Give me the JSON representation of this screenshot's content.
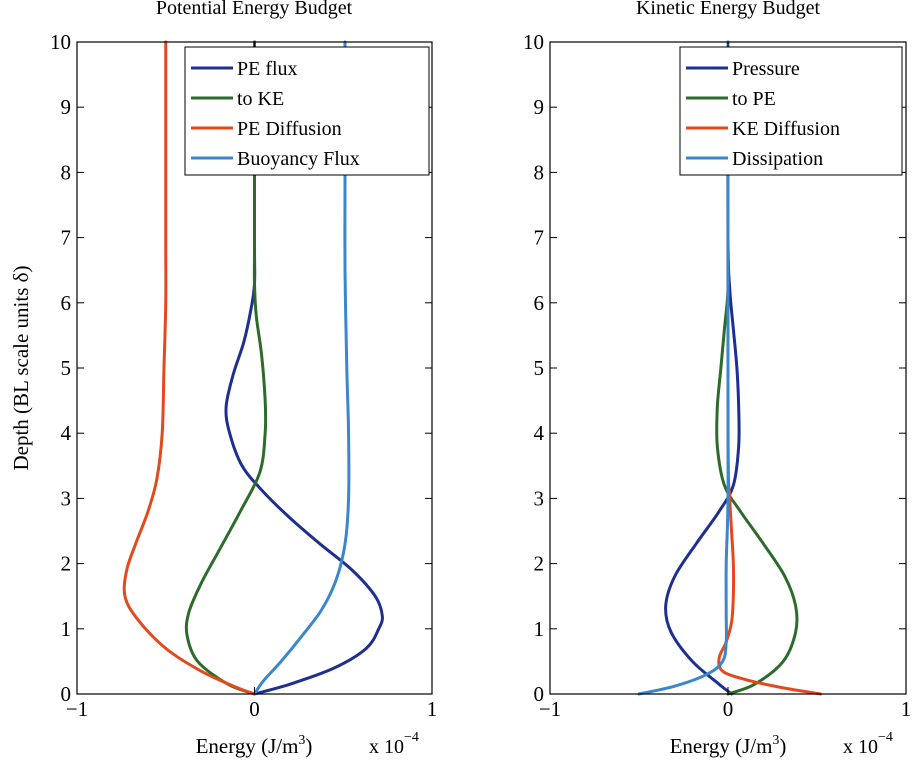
{
  "chart_data": [
    {
      "type": "line",
      "title": "Potential Energy Budget",
      "xlabel": "Energy (J/m",
      "xlabel_sup": "3",
      "xlabel_end": ")",
      "x_multiplier": "x 10",
      "x_multiplier_exp": "−4",
      "ylabel": "Depth (BL scale units δ)",
      "xlim": [
        -1,
        1
      ],
      "ylim": [
        0,
        10
      ],
      "x_ticks": [
        -1,
        0,
        1
      ],
      "x_tick_labels": [
        "−1",
        "0",
        "1"
      ],
      "y_ticks": [
        0,
        1,
        2,
        3,
        4,
        5,
        6,
        7,
        8,
        9,
        10
      ],
      "y_tick_labels": [
        "0",
        "1",
        "2",
        "3",
        "4",
        "5",
        "6",
        "7",
        "8",
        "9",
        "10"
      ],
      "grid": false,
      "legend_position": "top-right",
      "series": [
        {
          "name": "PE flux",
          "color": "#1f2f8f",
          "points": [
            [
              0,
              0
            ],
            [
              0.2,
              0.15
            ],
            [
              0.45,
              0.4
            ],
            [
              0.63,
              0.7
            ],
            [
              0.7,
              1.0
            ],
            [
              0.72,
              1.2
            ],
            [
              0.68,
              1.5
            ],
            [
              0.55,
              1.9
            ],
            [
              0.37,
              2.3
            ],
            [
              0.2,
              2.7
            ],
            [
              0.05,
              3.1
            ],
            [
              -0.07,
              3.5
            ],
            [
              -0.14,
              4.0
            ],
            [
              -0.16,
              4.4
            ],
            [
              -0.12,
              4.9
            ],
            [
              -0.06,
              5.4
            ],
            [
              -0.02,
              5.9
            ],
            [
              0,
              6.3
            ],
            [
              0,
              7
            ],
            [
              0,
              10
            ]
          ]
        },
        {
          "name": "to KE",
          "color": "#2e6b2a",
          "points": [
            [
              0,
              0
            ],
            [
              -0.15,
              0.15
            ],
            [
              -0.32,
              0.5
            ],
            [
              -0.38,
              0.9
            ],
            [
              -0.37,
              1.25
            ],
            [
              -0.3,
              1.7
            ],
            [
              -0.2,
              2.2
            ],
            [
              -0.08,
              2.8
            ],
            [
              0.03,
              3.4
            ],
            [
              0.06,
              4.0
            ],
            [
              0.06,
              4.5
            ],
            [
              0.04,
              5.2
            ],
            [
              0.01,
              5.8
            ],
            [
              0,
              6.3
            ],
            [
              0,
              7
            ],
            [
              0,
              10
            ]
          ]
        },
        {
          "name": "PE Diffusion",
          "color": "#e24a1e",
          "points": [
            [
              0,
              0
            ],
            [
              -0.1,
              0.1
            ],
            [
              -0.3,
              0.35
            ],
            [
              -0.5,
              0.7
            ],
            [
              -0.66,
              1.15
            ],
            [
              -0.73,
              1.5
            ],
            [
              -0.72,
              1.9
            ],
            [
              -0.67,
              2.3
            ],
            [
              -0.6,
              2.8
            ],
            [
              -0.55,
              3.3
            ],
            [
              -0.52,
              4.0
            ],
            [
              -0.51,
              5.0
            ],
            [
              -0.5,
              6.0
            ],
            [
              -0.5,
              7.0
            ],
            [
              -0.5,
              10
            ]
          ]
        },
        {
          "name": "Buoyancy Flux",
          "color": "#3a86cf",
          "points": [
            [
              0,
              0
            ],
            [
              0.05,
              0.2
            ],
            [
              0.15,
              0.5
            ],
            [
              0.27,
              0.9
            ],
            [
              0.38,
              1.3
            ],
            [
              0.46,
              1.75
            ],
            [
              0.51,
              2.3
            ],
            [
              0.53,
              3.0
            ],
            [
              0.53,
              4.0
            ],
            [
              0.52,
              5.0
            ],
            [
              0.51,
              6.5
            ],
            [
              0.51,
              8.0
            ],
            [
              0.51,
              10
            ]
          ]
        }
      ]
    },
    {
      "type": "line",
      "title": "Kinetic Energy Budget",
      "xlabel": "Energy (J/m",
      "xlabel_sup": "3",
      "xlabel_end": ")",
      "x_multiplier": "x 10",
      "x_multiplier_exp": "−4",
      "ylabel": "",
      "xlim": [
        -1,
        1
      ],
      "ylim": [
        0,
        10
      ],
      "x_ticks": [
        -1,
        0,
        1
      ],
      "x_tick_labels": [
        "−1",
        "0",
        "1"
      ],
      "y_ticks": [
        0,
        1,
        2,
        3,
        4,
        5,
        6,
        7,
        8,
        9,
        10
      ],
      "y_tick_labels": [
        "0",
        "1",
        "2",
        "3",
        "4",
        "5",
        "6",
        "7",
        "8",
        "9",
        "10"
      ],
      "grid": false,
      "legend_position": "top-right",
      "series": [
        {
          "name": "Pressure",
          "color": "#1f2f8f",
          "points": [
            [
              0.02,
              0
            ],
            [
              -0.05,
              0.15
            ],
            [
              -0.2,
              0.5
            ],
            [
              -0.32,
              0.95
            ],
            [
              -0.35,
              1.35
            ],
            [
              -0.3,
              1.8
            ],
            [
              -0.18,
              2.3
            ],
            [
              -0.05,
              2.8
            ],
            [
              0.03,
              3.2
            ],
            [
              0.06,
              3.8
            ],
            [
              0.06,
              4.4
            ],
            [
              0.05,
              5.0
            ],
            [
              0.03,
              5.6
            ],
            [
              0.01,
              6.2
            ],
            [
              0,
              7
            ],
            [
              0,
              10
            ]
          ]
        },
        {
          "name": "to PE",
          "color": "#2e6b2a",
          "points": [
            [
              0,
              0
            ],
            [
              0.15,
              0.15
            ],
            [
              0.31,
              0.5
            ],
            [
              0.38,
              0.95
            ],
            [
              0.38,
              1.35
            ],
            [
              0.32,
              1.8
            ],
            [
              0.2,
              2.3
            ],
            [
              0.07,
              2.8
            ],
            [
              -0.02,
              3.2
            ],
            [
              -0.06,
              3.8
            ],
            [
              -0.06,
              4.4
            ],
            [
              -0.04,
              5.0
            ],
            [
              -0.02,
              5.6
            ],
            [
              0,
              6.2
            ],
            [
              0,
              7
            ],
            [
              0,
              10
            ]
          ]
        },
        {
          "name": "KE Diffusion",
          "color": "#e24a1e",
          "points": [
            [
              0.52,
              0
            ],
            [
              0.3,
              0.1
            ],
            [
              0.1,
              0.22
            ],
            [
              -0.03,
              0.35
            ],
            [
              -0.05,
              0.55
            ],
            [
              -0.01,
              0.8
            ],
            [
              0.02,
              1.1
            ],
            [
              0.03,
              1.5
            ],
            [
              0.03,
              2.0
            ],
            [
              0.02,
              2.5
            ],
            [
              0.01,
              3.0
            ],
            [
              0,
              4.0
            ],
            [
              0,
              10
            ]
          ]
        },
        {
          "name": "Dissipation",
          "color": "#3a86cf",
          "points": [
            [
              -0.5,
              0
            ],
            [
              -0.3,
              0.12
            ],
            [
              -0.12,
              0.3
            ],
            [
              -0.03,
              0.5
            ],
            [
              -0.01,
              0.8
            ],
            [
              -0.01,
              1.2
            ],
            [
              -0.01,
              2.0
            ],
            [
              0,
              3.0
            ],
            [
              0,
              5.0
            ],
            [
              0,
              10
            ]
          ]
        }
      ]
    }
  ]
}
